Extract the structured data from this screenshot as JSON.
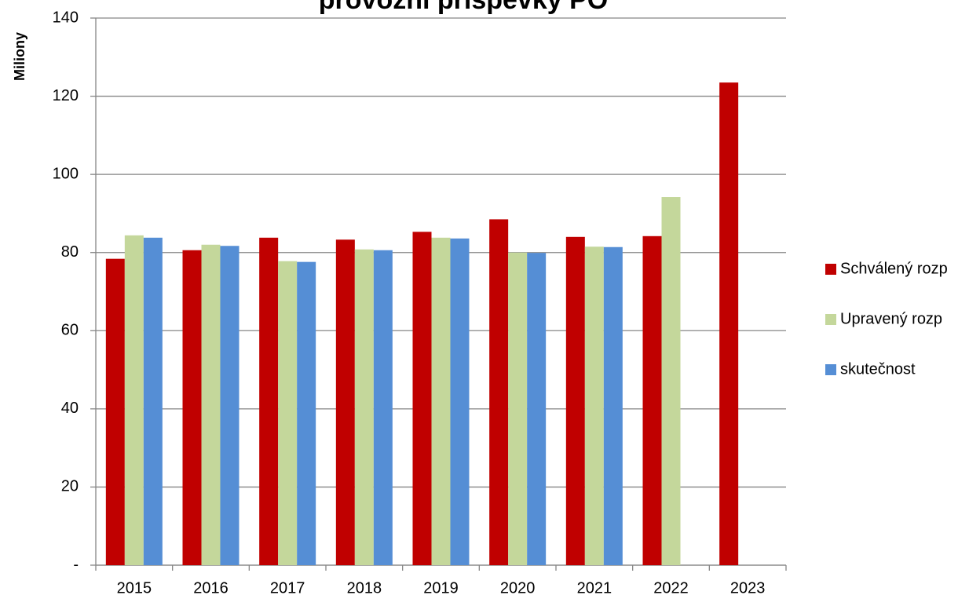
{
  "chart_data": {
    "type": "bar",
    "title": "provozní příspěvky PO",
    "y_label": "Miliony",
    "categories": [
      "2015",
      "2016",
      "2017",
      "2018",
      "2019",
      "2020",
      "2021",
      "2022",
      "2023"
    ],
    "series": [
      {
        "name": "Schválený rozp",
        "color": "#c00000",
        "values": [
          78.4,
          80.6,
          83.8,
          83.3,
          85.3,
          88.5,
          84.0,
          84.2,
          123.5
        ]
      },
      {
        "name": "Upravený rozp",
        "color": "#c4d79b",
        "values": [
          84.4,
          82.0,
          77.8,
          80.8,
          83.8,
          80.0,
          81.5,
          94.2,
          null
        ]
      },
      {
        "name": "skutečnost",
        "color": "#558ed5",
        "values": [
          83.8,
          81.7,
          77.6,
          80.6,
          83.6,
          79.9,
          81.4,
          null,
          null
        ]
      }
    ],
    "ylim": [
      0,
      140
    ],
    "yticks": [
      {
        "value": 0,
        "label": "-"
      },
      20,
      40,
      60,
      80,
      100,
      120,
      140
    ],
    "grid": true,
    "legend": "right"
  }
}
